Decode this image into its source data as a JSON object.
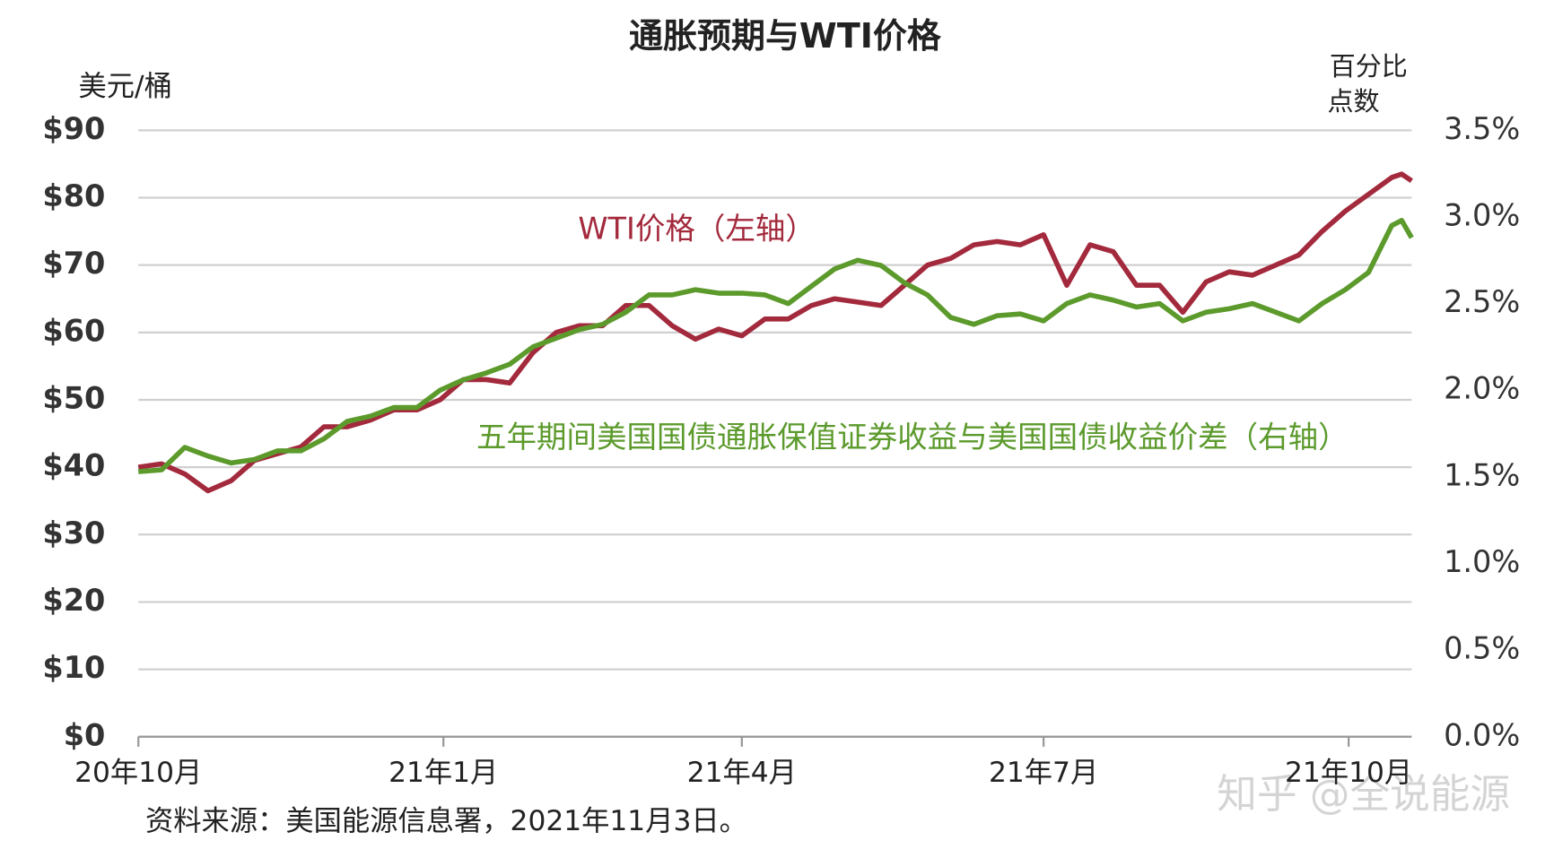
{
  "chart_data": {
    "type": "line",
    "title": "通胀预期与WTI价格",
    "ylabel": "美元/桶",
    "y2label": [
      "百分比",
      "点数"
    ],
    "source": "资料来源：美国能源信息署，2021年11月3日。",
    "watermark": "知乎 @全说能源",
    "x": [
      0,
      7,
      14,
      21,
      28,
      35,
      42,
      49,
      56,
      63,
      70,
      77,
      84,
      91,
      98,
      105,
      112,
      119,
      126,
      133,
      140,
      147,
      154,
      161,
      168,
      175,
      182,
      189,
      196,
      203,
      210,
      217,
      224,
      231,
      238,
      245,
      252,
      259,
      266,
      273,
      280,
      287,
      294,
      301,
      308,
      315,
      322,
      329,
      336,
      343,
      350,
      357,
      364,
      371,
      378,
      381,
      384
    ],
    "xlim": [
      0,
      384
    ],
    "xticks": [
      {
        "value": 0,
        "label": "20年10月"
      },
      {
        "value": 92,
        "label": "21年1月"
      },
      {
        "value": 182,
        "label": "21年4月"
      },
      {
        "value": 273,
        "label": "21年7月"
      },
      {
        "value": 365,
        "label": "21年10月"
      }
    ],
    "ylim": [
      0,
      90
    ],
    "yticks": [
      {
        "value": 0,
        "label": "$0"
      },
      {
        "value": 10,
        "label": "$10"
      },
      {
        "value": 20,
        "label": "$20"
      },
      {
        "value": 30,
        "label": "$30"
      },
      {
        "value": 40,
        "label": "$40"
      },
      {
        "value": 50,
        "label": "$50"
      },
      {
        "value": 60,
        "label": "$60"
      },
      {
        "value": 70,
        "label": "$70"
      },
      {
        "value": 80,
        "label": "$80"
      },
      {
        "value": 90,
        "label": "$90"
      }
    ],
    "y2lim": [
      0,
      3.5
    ],
    "y2ticks": [
      {
        "value": 0,
        "label": "0.0%"
      },
      {
        "value": 0.5,
        "label": "0.5%"
      },
      {
        "value": 1,
        "label": "1.0%"
      },
      {
        "value": 1.5,
        "label": "1.5%"
      },
      {
        "value": 2,
        "label": "2.0%"
      },
      {
        "value": 2.5,
        "label": "2.5%"
      },
      {
        "value": 3,
        "label": "3.0%"
      },
      {
        "value": 3.5,
        "label": "3.5%"
      }
    ],
    "grid": true,
    "series": [
      {
        "name": "WTI价格（左轴）",
        "color": "#a3293c",
        "axis": "y",
        "values": [
          40,
          40.5,
          39,
          36.5,
          38,
          41,
          42,
          43,
          46,
          46,
          47,
          48.5,
          48.5,
          50,
          53,
          53,
          52.5,
          57,
          60,
          61,
          61,
          64,
          64,
          61,
          59,
          60.5,
          59.5,
          62,
          62,
          64,
          65,
          64.5,
          64,
          67,
          70,
          71,
          73,
          73.5,
          73,
          74.5,
          67,
          73,
          72,
          67,
          67,
          63,
          67.5,
          69,
          68.5,
          70,
          71.5,
          75,
          78,
          80.5,
          83,
          83.5,
          82.5
        ]
      },
      {
        "name": "五年期间美国国债通胀保值证券收益与美国国债收益价差（右轴）",
        "color": "#5c9a2c",
        "axis": "y2",
        "values": [
          1.53,
          1.54,
          1.67,
          1.62,
          1.58,
          1.6,
          1.65,
          1.65,
          1.72,
          1.82,
          1.85,
          1.9,
          1.9,
          2.0,
          2.06,
          2.1,
          2.15,
          2.25,
          2.3,
          2.35,
          2.38,
          2.45,
          2.55,
          2.55,
          2.58,
          2.56,
          2.56,
          2.55,
          2.5,
          2.6,
          2.7,
          2.75,
          2.72,
          2.62,
          2.55,
          2.42,
          2.38,
          2.43,
          2.44,
          2.4,
          2.5,
          2.55,
          2.52,
          2.48,
          2.5,
          2.4,
          2.45,
          2.47,
          2.5,
          2.45,
          2.4,
          2.5,
          2.58,
          2.68,
          2.95,
          2.98,
          2.88
        ]
      }
    ]
  }
}
